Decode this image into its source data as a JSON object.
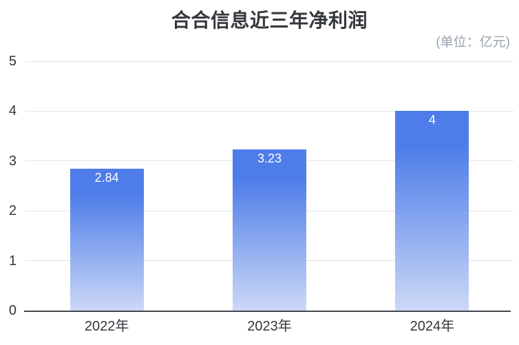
{
  "chart_data": {
    "type": "bar",
    "title": "合合信息近三年净利润",
    "unit_label": "(单位：亿元)",
    "categories": [
      "2022年",
      "2023年",
      "2024年"
    ],
    "values": [
      2.84,
      3.23,
      4
    ],
    "value_labels": [
      "2.84",
      "3.23",
      "4"
    ],
    "ylabel": "",
    "xlabel": "",
    "ylim": [
      0,
      5
    ],
    "yticks": [
      0,
      1,
      2,
      3,
      4,
      5
    ],
    "grid": true,
    "legend": "none",
    "colors": {
      "bar_gradient_top": "#4e7de9",
      "bar_gradient_bottom": "#ccd8f6",
      "gridline": "#e1e3e7",
      "axis_line": "#43464e",
      "title_text": "#34373c",
      "unit_text": "#9aa2af",
      "tick_text": "#33363c",
      "value_label_text": "#ffffff"
    }
  }
}
